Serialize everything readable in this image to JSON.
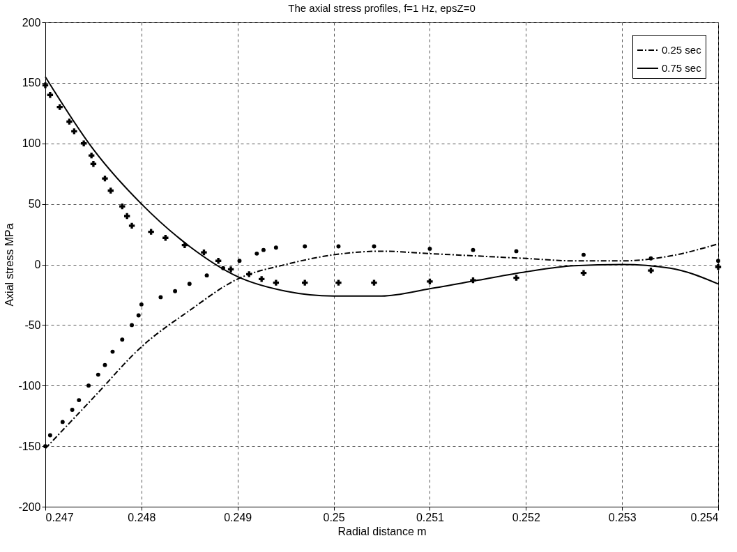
{
  "chart_data": {
    "type": "line",
    "title": "The axial stress profiles, f=1 Hz, epsZ=0",
    "xlabel": "Radial distance m",
    "ylabel": "Axial stress MPa",
    "xlim": [
      0.247,
      0.254
    ],
    "xticks": [
      0.247,
      0.248,
      0.249,
      0.25,
      0.251,
      0.252,
      0.253,
      0.254
    ],
    "ylim": [
      -200,
      200
    ],
    "yticks": [
      -200,
      -150,
      -100,
      -50,
      0,
      50,
      100,
      150,
      200
    ],
    "grid": true,
    "legend": "top right",
    "series": [
      {
        "name": "0.25 sec",
        "type": "line",
        "color": "#000000",
        "line_style": "dashdot",
        "x": [
          0.247,
          0.2475,
          0.248,
          0.2485,
          0.249,
          0.2495,
          0.25,
          0.2505,
          0.251,
          0.2515,
          0.252,
          0.2525,
          0.253,
          0.2535,
          0.254
        ],
        "values": [
          -152,
          -110,
          -68,
          -38,
          -12,
          0,
          8,
          11,
          9,
          7,
          5,
          3,
          3,
          7,
          17
        ]
      },
      {
        "name": "0.75 sec",
        "type": "line",
        "color": "#000000",
        "line_style": "solid",
        "x": [
          0.247,
          0.2475,
          0.248,
          0.2485,
          0.249,
          0.2495,
          0.25,
          0.2505,
          0.251,
          0.2515,
          0.252,
          0.2525,
          0.253,
          0.2535,
          0.254
        ],
        "values": [
          155,
          95,
          50,
          15,
          -10,
          -22,
          -26,
          -26,
          -20,
          -13,
          -6,
          -1,
          0,
          -3,
          -16
        ]
      },
      {
        "type": "scatter",
        "color": "#000000",
        "marker": "cross",
        "x": [
          0.247,
          0.24705,
          0.24715,
          0.24725,
          0.2473,
          0.2474,
          0.24748,
          0.2475,
          0.24762,
          0.24768,
          0.2478,
          0.24785,
          0.2479,
          0.2481,
          0.24825,
          0.24845,
          0.24865,
          0.2488,
          0.24893,
          0.24912,
          0.24925,
          0.2494,
          0.2497,
          0.25005,
          0.25042,
          0.251,
          0.25145,
          0.2519,
          0.2526,
          0.2533,
          0.254
        ],
        "values": [
          148,
          140,
          130,
          118,
          110,
          100,
          90,
          83,
          71,
          61,
          48,
          40,
          32,
          27,
          22,
          16,
          10,
          3,
          -4,
          -8,
          -12,
          -15,
          -15,
          -15,
          -15,
          -14,
          -13,
          -11,
          -7,
          -5,
          -2
        ]
      },
      {
        "type": "scatter",
        "color": "#000000",
        "marker": "circle",
        "x": [
          0.247,
          0.24705,
          0.24718,
          0.24728,
          0.24735,
          0.24745,
          0.24755,
          0.24762,
          0.2477,
          0.2478,
          0.2479,
          0.24797,
          0.248,
          0.2482,
          0.24835,
          0.2485,
          0.24868,
          0.24885,
          0.24902,
          0.2492,
          0.24927,
          0.2494,
          0.2497,
          0.25005,
          0.25042,
          0.251,
          0.25145,
          0.2519,
          0.2526,
          0.2533,
          0.254
        ],
        "values": [
          -150,
          -141,
          -130,
          -120,
          -112,
          -100,
          -91,
          -83,
          -72,
          -62,
          -50,
          -42,
          -33,
          -27,
          -22,
          -16,
          -9,
          -3,
          3,
          9,
          12,
          14,
          15,
          15,
          15,
          13,
          12,
          11,
          8,
          5,
          3
        ]
      }
    ]
  }
}
